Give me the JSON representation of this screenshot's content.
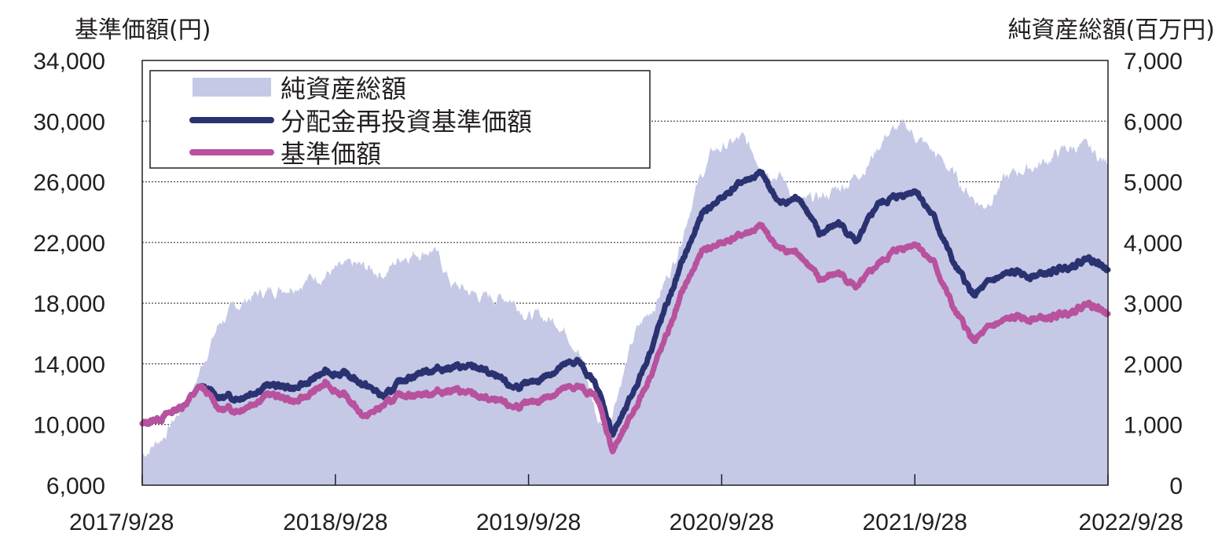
{
  "chart_data": {
    "type": "line",
    "title": "",
    "left_axis": {
      "label": "基準価額(円)",
      "ylim": [
        6000,
        34000
      ],
      "ticks": [
        "34,000",
        "30,000",
        "26,000",
        "22,000",
        "18,000",
        "14,000",
        "10,000",
        "6,000"
      ]
    },
    "right_axis": {
      "label": "純資産総額(百万円)",
      "ylim": [
        0,
        7000
      ],
      "ticks": [
        "7,000",
        "6,000",
        "5,000",
        "4,000",
        "3,000",
        "2,000",
        "1,000",
        "0"
      ]
    },
    "x_ticks": [
      "2017/9/28",
      "2018/9/28",
      "2019/9/28",
      "2020/9/28",
      "2021/9/28",
      "2022/9/28"
    ],
    "xlim": [
      2017.745,
      2022.745
    ],
    "grid": "horizontal dotted",
    "legend_position": "top-left",
    "series": [
      {
        "name": "純資産総額",
        "type": "area",
        "axis": "right",
        "color": "#c5c9e6",
        "x": [
          2017.745,
          2017.85,
          2018.0,
          2018.08,
          2018.15,
          2018.3,
          2018.5,
          2018.7,
          2018.85,
          2019.0,
          2019.1,
          2019.25,
          2019.35,
          2019.5,
          2019.65,
          2019.75,
          2019.9,
          2020.0,
          2020.1,
          2020.15,
          2020.2,
          2020.3,
          2020.4,
          2020.5,
          2020.6,
          2020.7,
          2020.85,
          2020.95,
          2021.05,
          2021.15,
          2021.3,
          2021.4,
          2021.5,
          2021.6,
          2021.7,
          2021.8,
          2021.9,
          2022.0,
          2022.1,
          2022.2,
          2022.3,
          2022.4,
          2022.5,
          2022.6,
          2022.745
        ],
        "values": [
          500,
          800,
          1500,
          2200,
          2700,
          3100,
          3300,
          3500,
          3600,
          3500,
          3800,
          3900,
          3300,
          3100,
          3100,
          2800,
          2700,
          2300,
          1100,
          900,
          1500,
          2500,
          3000,
          3700,
          4800,
          5500,
          5700,
          5300,
          5100,
          4600,
          4800,
          5000,
          5300,
          5800,
          5900,
          5600,
          5300,
          4900,
          4600,
          5000,
          5200,
          5300,
          5500,
          5600,
          5300
        ]
      },
      {
        "name": "分配金再投資基準価額",
        "type": "line",
        "axis": "left",
        "color": "#2b3271",
        "x": [
          2017.745,
          2017.85,
          2017.95,
          2018.05,
          2018.15,
          2018.25,
          2018.4,
          2018.55,
          2018.7,
          2018.8,
          2018.9,
          2019.0,
          2019.1,
          2019.2,
          2019.35,
          2019.5,
          2019.65,
          2019.75,
          2019.9,
          2020.0,
          2020.1,
          2020.18,
          2020.25,
          2020.35,
          2020.45,
          2020.55,
          2020.65,
          2020.75,
          2020.85,
          2020.95,
          2021.05,
          2021.15,
          2021.25,
          2021.35,
          2021.45,
          2021.55,
          2021.65,
          2021.75,
          2021.85,
          2021.95,
          2022.05,
          2022.15,
          2022.25,
          2022.35,
          2022.45,
          2022.55,
          2022.65,
          2022.745
        ],
        "values": [
          10000,
          10500,
          11200,
          12500,
          11800,
          11800,
          12600,
          12400,
          13500,
          13300,
          12600,
          11800,
          13000,
          13500,
          13800,
          13700,
          12500,
          12600,
          13700,
          14200,
          12500,
          9400,
          11000,
          14000,
          17500,
          21000,
          24000,
          25000,
          26000,
          26500,
          24500,
          25000,
          22500,
          23300,
          22000,
          24500,
          25000,
          25500,
          23500,
          20500,
          18500,
          19500,
          20000,
          19800,
          20000,
          20500,
          21000,
          20200
        ]
      },
      {
        "name": "基準価額",
        "type": "line",
        "axis": "left",
        "color": "#b8529e",
        "x": [
          2017.745,
          2017.85,
          2017.95,
          2018.05,
          2018.15,
          2018.25,
          2018.4,
          2018.55,
          2018.7,
          2018.8,
          2018.9,
          2019.0,
          2019.1,
          2019.2,
          2019.35,
          2019.5,
          2019.65,
          2019.75,
          2019.9,
          2020.0,
          2020.1,
          2020.18,
          2020.25,
          2020.35,
          2020.45,
          2020.55,
          2020.65,
          2020.75,
          2020.85,
          2020.95,
          2021.05,
          2021.15,
          2021.25,
          2021.35,
          2021.45,
          2021.55,
          2021.65,
          2021.75,
          2021.85,
          2021.95,
          2022.05,
          2022.15,
          2022.25,
          2022.35,
          2022.45,
          2022.55,
          2022.65,
          2022.745
        ],
        "values": [
          10000,
          10500,
          11200,
          12500,
          11000,
          11000,
          12000,
          11500,
          12700,
          11800,
          10500,
          11300,
          12000,
          12000,
          12300,
          11800,
          11200,
          11300,
          12200,
          12500,
          11800,
          8300,
          9800,
          12500,
          15500,
          19000,
          21500,
          22000,
          22500,
          23000,
          21500,
          21300,
          19500,
          20000,
          19000,
          20500,
          21500,
          22000,
          20500,
          17500,
          15500,
          16500,
          17000,
          17000,
          17000,
          17500,
          18000,
          17300
        ]
      }
    ]
  }
}
